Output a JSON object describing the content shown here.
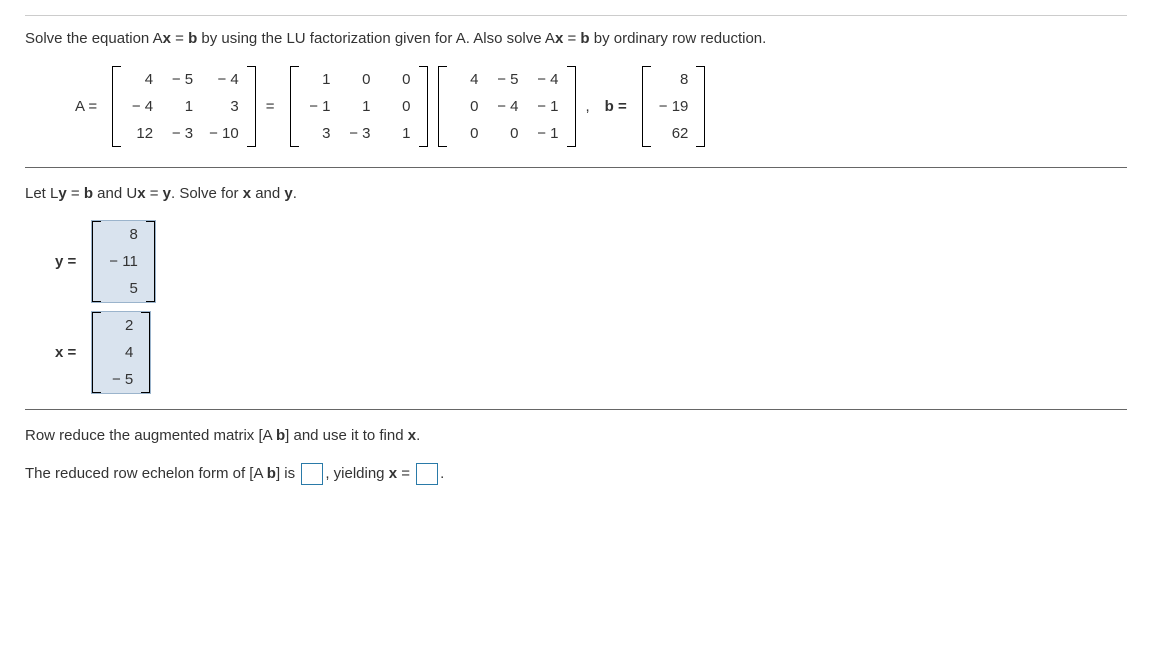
{
  "question": {
    "line1_prefix": "Solve the equation A",
    "line1_ax": "x",
    "line1_eq": " = ",
    "line1_b": "b",
    "line1_mid": " by using the LU factorization given for A. Also solve A",
    "line1_ax2": "x",
    "line1_eq2": " = ",
    "line1_b2": "b",
    "line1_suffix": " by ordinary row reduction."
  },
  "labels": {
    "A": "A =",
    "eq": "=",
    "comma": ",",
    "b": "b =",
    "y": "y  =",
    "x": "x  ="
  },
  "matrices": {
    "A": [
      [
        "4",
        "− 5",
        "− 4"
      ],
      [
        "− 4",
        "1",
        "3"
      ],
      [
        "12",
        "− 3",
        "− 10"
      ]
    ],
    "L": [
      [
        "1",
        "0",
        "0"
      ],
      [
        "− 1",
        "1",
        "0"
      ],
      [
        "3",
        "− 3",
        "1"
      ]
    ],
    "U": [
      [
        "4",
        "− 5",
        "− 4"
      ],
      [
        "0",
        "− 4",
        "− 1"
      ],
      [
        "0",
        "0",
        "− 1"
      ]
    ],
    "b": [
      [
        "8"
      ],
      [
        "− 19"
      ],
      [
        "62"
      ]
    ],
    "y": [
      [
        "8"
      ],
      [
        "− 11"
      ],
      [
        "5"
      ]
    ],
    "x": [
      [
        "2"
      ],
      [
        "4"
      ],
      [
        "− 5"
      ]
    ]
  },
  "instruction": {
    "pre": "Let L",
    "y1": "y",
    "mid1": " = ",
    "b1": "b",
    "mid2": " and U",
    "x1": "x",
    "mid3": " = ",
    "y2": "y",
    "post": ". Solve for ",
    "xb": "x",
    "and": " and ",
    "yb": "y",
    "dot": "."
  },
  "rowreduce": {
    "line1_pre": "Row reduce the augmented matrix [A ",
    "line1_b": "b",
    "line1_post": "] and use it to find ",
    "line1_x": "x",
    "line1_dot": ".",
    "line2_pre": "The reduced row echelon form of [A ",
    "line2_b": "b",
    "line2_post": "] is ",
    "line2_yield": ", yielding ",
    "line2_x": "x",
    "line2_eq": " = ",
    "line2_dot": "."
  }
}
